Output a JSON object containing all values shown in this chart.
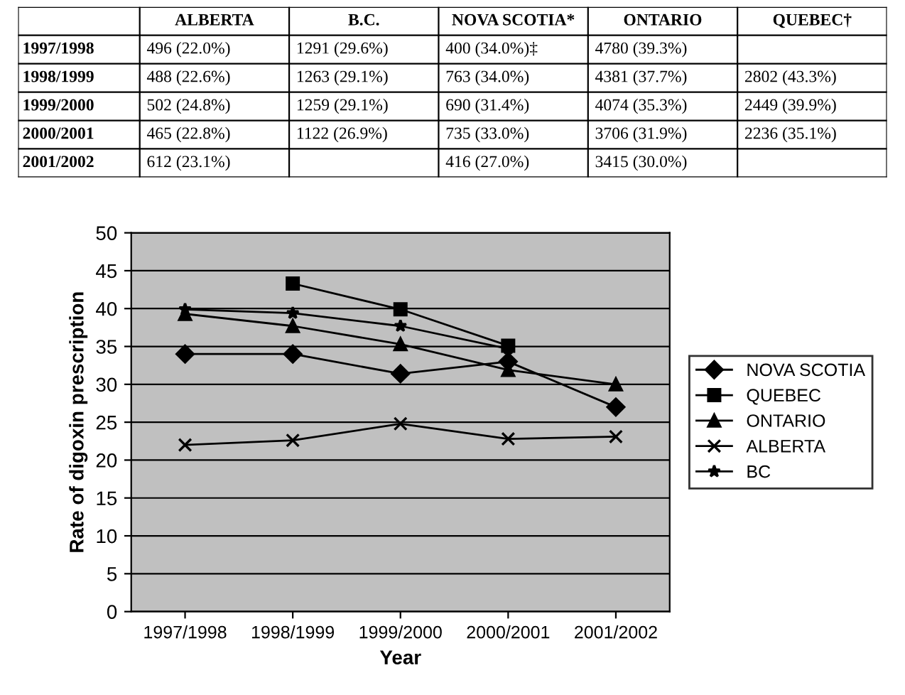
{
  "chart_data": [
    {
      "type": "other",
      "categories": [
        "ALBERTA",
        "B.C.",
        "NOVA SCOTIA*",
        "ONTARIO",
        "QUEBEC†"
      ],
      "y_categories": [
        "1997/1998",
        "1998/1999",
        "1999/2000",
        "2000/2001",
        "2001/2002"
      ],
      "cell_labels": [
        [
          "496 (22.0%)",
          "1291 (29.6%)",
          "400 (34.0%)‡",
          "4780 (39.3%)",
          null
        ],
        [
          "488 (22.6%)",
          "1263 (29.1%)",
          "763 (34.0%)",
          "4381 (37.7%)",
          "2802 (43.3%)"
        ],
        [
          "502 (24.8%)",
          "1259 (29.1%)",
          "690 (31.4%)",
          "4074 (35.3%)",
          "2449 (39.9%)"
        ],
        [
          "465 (22.8%)",
          "1122 (26.9%)",
          "735 (33.0%)",
          "3706 (31.9%)",
          "2236 (35.1%)"
        ],
        [
          "612 (23.1%)",
          null,
          "416 (27.0%)",
          "3415 (30.0%)",
          null
        ]
      ]
    },
    {
      "type": "line",
      "xlabel": "Year",
      "ylabel": "Rate of digoxin prescription",
      "categories": [
        "1997/1998",
        "1998/1999",
        "1999/2000",
        "2000/2001",
        "2001/2002"
      ],
      "ylim": [
        0,
        50
      ],
      "yticks": [
        0,
        5,
        10,
        15,
        20,
        25,
        30,
        35,
        40,
        45,
        50
      ],
      "grid": "y",
      "legend": "right",
      "series": [
        {
          "name": "NOVA SCOTIA",
          "color": "#000000",
          "marker": "diamond",
          "values": [
            34.0,
            34.0,
            31.4,
            33.0,
            27.0
          ]
        },
        {
          "name": "QUEBEC",
          "color": "#000000",
          "marker": "square",
          "values": [
            null,
            43.3,
            39.9,
            35.1,
            null
          ]
        },
        {
          "name": "ONTARIO",
          "color": "#000000",
          "marker": "triangle",
          "values": [
            39.3,
            37.7,
            35.3,
            31.9,
            30.0
          ]
        },
        {
          "name": "ALBERTA",
          "color": "#000000",
          "marker": "cross",
          "values": [
            22.0,
            22.6,
            24.8,
            22.8,
            23.1
          ]
        },
        {
          "name": "BC",
          "color": "#000000",
          "marker": "star",
          "values": [
            39.9,
            39.4,
            37.7,
            34.7,
            null
          ]
        }
      ]
    }
  ]
}
